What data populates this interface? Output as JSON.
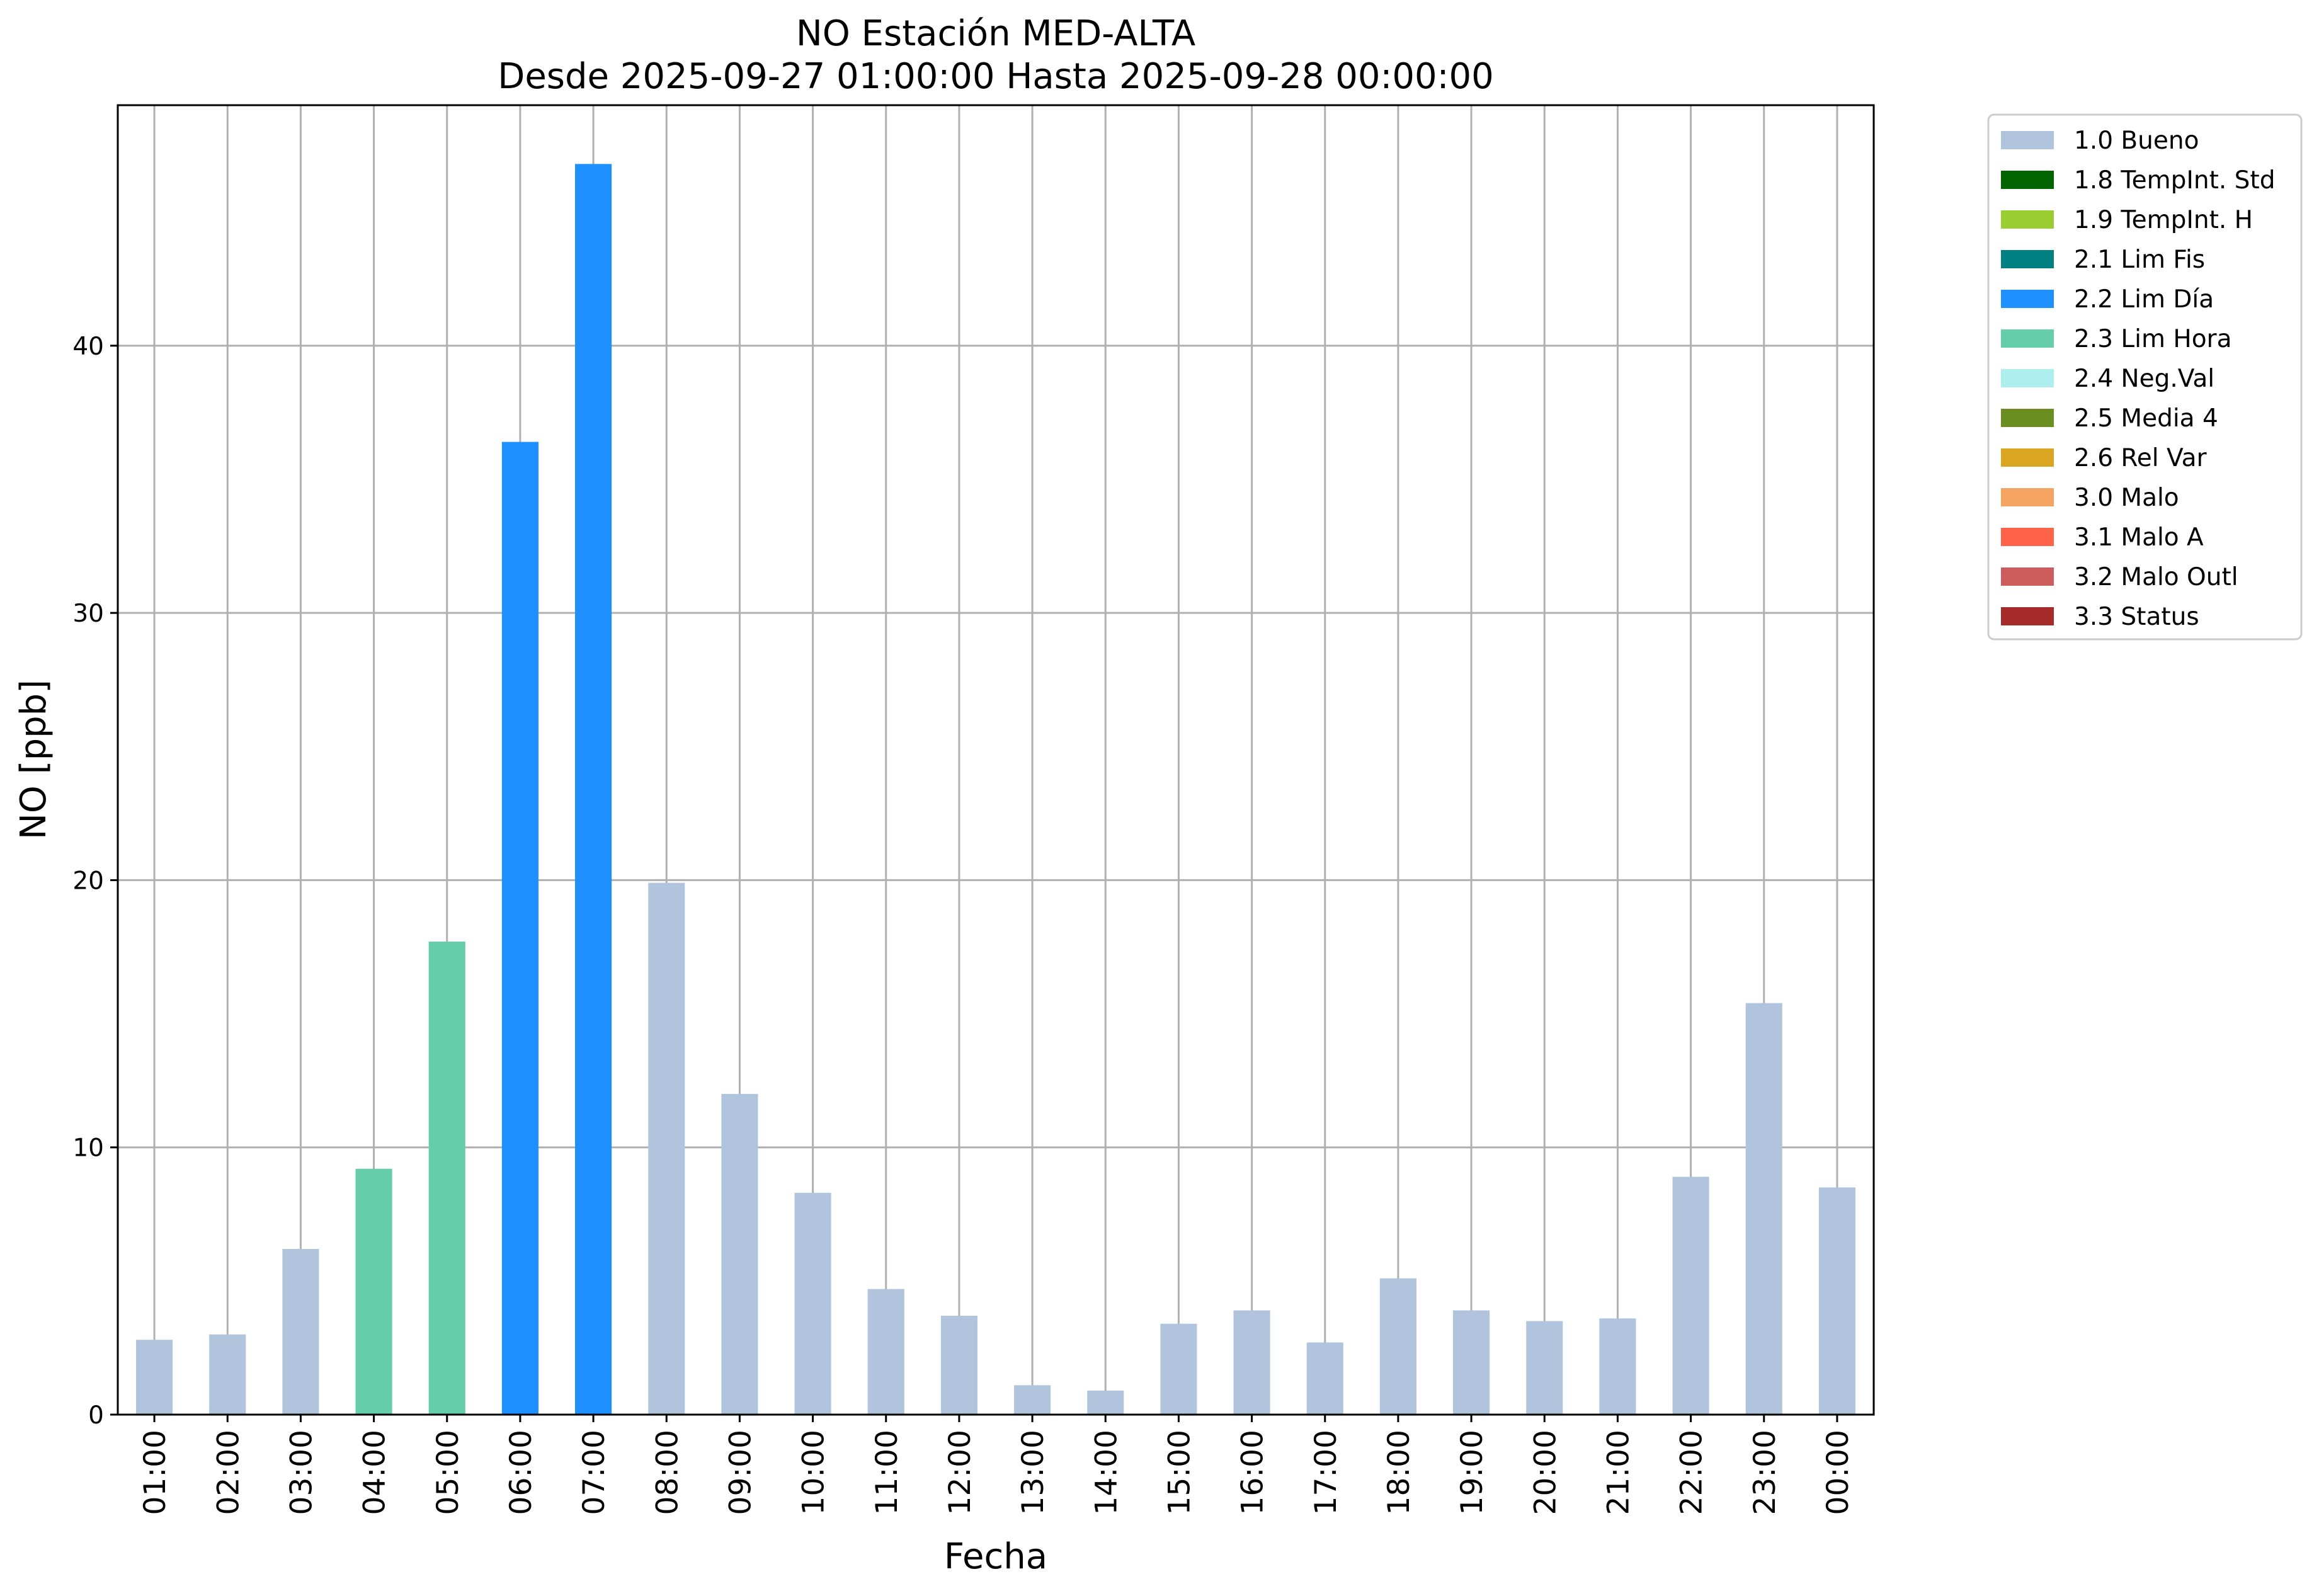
{
  "chart_data": {
    "type": "bar",
    "title_line1": "NO Estación MED-ALTA",
    "title_line2": "Desde 2025-09-27 01:00:00 Hasta 2025-09-28 00:00:00",
    "xlabel": "Fecha",
    "ylabel": "NO [ppb]",
    "ylim": [
      0,
      49
    ],
    "yticks": [
      0,
      10,
      20,
      30,
      40
    ],
    "grid": true,
    "legend_position": "outside-right-top",
    "categories": [
      "01:00",
      "02:00",
      "03:00",
      "04:00",
      "05:00",
      "06:00",
      "07:00",
      "08:00",
      "09:00",
      "10:00",
      "11:00",
      "12:00",
      "13:00",
      "14:00",
      "15:00",
      "16:00",
      "17:00",
      "18:00",
      "19:00",
      "20:00",
      "21:00",
      "22:00",
      "23:00",
      "00:00"
    ],
    "values": [
      2.8,
      3.0,
      6.2,
      9.2,
      17.7,
      36.4,
      46.8,
      19.9,
      12.0,
      8.3,
      4.7,
      3.7,
      1.1,
      0.9,
      3.4,
      3.9,
      2.7,
      5.1,
      3.9,
      3.5,
      3.6,
      8.9,
      15.4,
      8.5
    ],
    "flags": [
      "1.0 Bueno",
      "1.0 Bueno",
      "1.0 Bueno",
      "2.3 Lim Hora",
      "2.3 Lim Hora",
      "2.2 Lim Día",
      "2.2 Lim Día",
      "1.0 Bueno",
      "1.0 Bueno",
      "1.0 Bueno",
      "1.0 Bueno",
      "1.0 Bueno",
      "1.0 Bueno",
      "1.0 Bueno",
      "1.0 Bueno",
      "1.0 Bueno",
      "1.0 Bueno",
      "1.0 Bueno",
      "1.0 Bueno",
      "1.0 Bueno",
      "1.0 Bueno",
      "1.0 Bueno",
      "1.0 Bueno",
      "1.0 Bueno"
    ],
    "legend": [
      {
        "name": "1.0 Bueno",
        "color": "#b0c4de"
      },
      {
        "name": "1.8 TempInt. Std",
        "color": "#006400"
      },
      {
        "name": "1.9 TempInt. H",
        "color": "#9acd32"
      },
      {
        "name": "2.1 Lim Fis",
        "color": "#008080"
      },
      {
        "name": "2.2 Lim Día",
        "color": "#1e90ff"
      },
      {
        "name": "2.3 Lim Hora",
        "color": "#66cdaa"
      },
      {
        "name": "2.4 Neg.Val",
        "color": "#afeeee"
      },
      {
        "name": "2.5 Media 4",
        "color": "#6b8e23"
      },
      {
        "name": "2.6 Rel Var",
        "color": "#daa520"
      },
      {
        "name": "3.0 Malo",
        "color": "#f4a460"
      },
      {
        "name": "3.1 Malo A",
        "color": "#ff6347"
      },
      {
        "name": "3.2 Malo Outl",
        "color": "#cd5c5c"
      },
      {
        "name": "3.3 Status",
        "color": "#a52a2a"
      }
    ]
  }
}
